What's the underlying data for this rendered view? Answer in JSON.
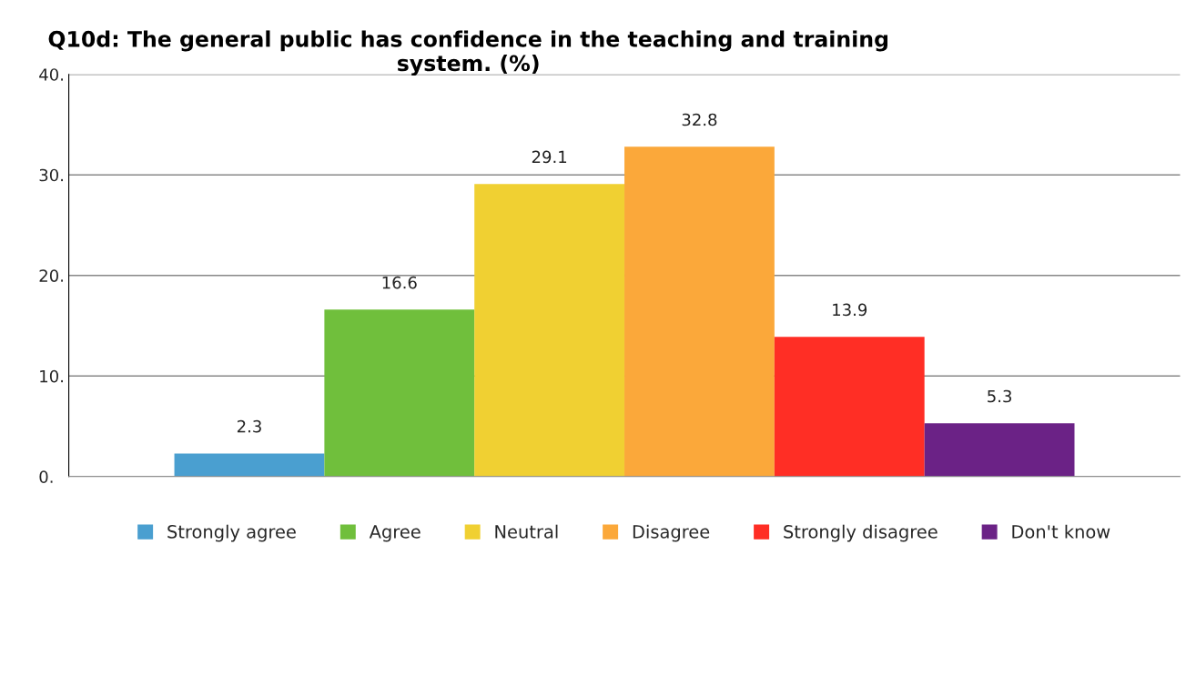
{
  "chart_data": {
    "type": "bar",
    "title": "Q10d: The general public has confidence in the teaching and training system. (%)",
    "categories": [
      null
    ],
    "series": [
      {
        "name": "Strongly agree",
        "color": "#4a9fd0",
        "values": [
          2.3
        ]
      },
      {
        "name": "Agree",
        "color": "#70bf3c",
        "values": [
          16.6
        ]
      },
      {
        "name": "Neutral",
        "color": "#f0d032",
        "values": [
          29.1
        ]
      },
      {
        "name": "Disagree",
        "color": "#fba83a",
        "values": [
          32.8
        ]
      },
      {
        "name": "Strongly disagree",
        "color": "#ff2e25",
        "values": [
          13.9
        ]
      },
      {
        "name": "Don't know",
        "color": "#6b2286",
        "values": [
          5.3
        ]
      }
    ],
    "ylim": [
      0,
      40
    ],
    "yticks": [
      {
        "value": 0,
        "label": "0."
      },
      {
        "value": 10,
        "label": "10."
      },
      {
        "value": 20,
        "label": "20."
      },
      {
        "value": 30,
        "label": "30."
      },
      {
        "value": 40,
        "label": "40."
      }
    ],
    "grid": "y",
    "legend": "bottom",
    "data_labels": true
  }
}
